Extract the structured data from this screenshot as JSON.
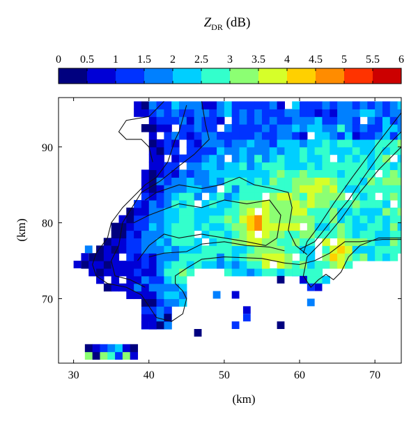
{
  "chart_data": {
    "type": "heatmap",
    "colorbar": {
      "title_main": "Z",
      "title_sub": "DR",
      "title_unit": " (dB)",
      "ticks": [
        "0",
        "0.5",
        "1",
        "1.5",
        "2",
        "2.5",
        "3",
        "3.5",
        "4",
        "4.5",
        "5",
        "5.5",
        "6"
      ],
      "range": [
        0,
        6
      ],
      "colors": [
        "#00007f",
        "#0000d6",
        "#0033ff",
        "#0080ff",
        "#00cfff",
        "#33ffcc",
        "#8cff73",
        "#d6ff29",
        "#ffd000",
        "#ff8c00",
        "#ff3300",
        "#cc0000",
        "#800000"
      ]
    },
    "xlabel": "(km)",
    "ylabel": "(km)",
    "xlim": [
      28,
      73.5
    ],
    "ylim": [
      61.5,
      96.5
    ],
    "xticks": [
      30,
      40,
      50,
      60,
      70
    ],
    "yticks": [
      70,
      80,
      90
    ],
    "values_note": "dB per 1 km cell, estimated",
    "blobs": [
      {
        "x": 40.5,
        "y": 74,
        "rx": 3.5,
        "ry": 3,
        "v": 0.6
      },
      {
        "x": 35,
        "y": 75,
        "rx": 2.5,
        "ry": 4,
        "v": 0.4
      },
      {
        "x": 37,
        "y": 80,
        "rx": 3,
        "ry": 4,
        "v": 0.9
      },
      {
        "x": 41,
        "y": 88,
        "rx": 2,
        "ry": 3,
        "v": 0.7
      },
      {
        "x": 45,
        "y": 91,
        "rx": 4,
        "ry": 4,
        "v": 1.0
      },
      {
        "x": 55,
        "y": 93,
        "rx": 6,
        "ry": 3,
        "v": 1.3
      },
      {
        "x": 54.5,
        "y": 79.5,
        "rx": 3,
        "ry": 2.5,
        "v": 4.7
      },
      {
        "x": 57.5,
        "y": 81.5,
        "rx": 1.5,
        "ry": 1.5,
        "v": 5.3
      },
      {
        "x": 54,
        "y": 80.5,
        "rx": 1,
        "ry": 1,
        "v": 5.4
      },
      {
        "x": 57,
        "y": 75,
        "rx": 2.5,
        "ry": 1.2,
        "v": 4.5
      },
      {
        "x": 63.5,
        "y": 84.5,
        "rx": 2,
        "ry": 1.5,
        "v": 4.6
      },
      {
        "x": 65,
        "y": 76.5,
        "rx": 1.5,
        "ry": 2.5,
        "v": 4.4
      },
      {
        "x": 59,
        "y": 82,
        "rx": 5,
        "ry": 5,
        "v": 3.4
      },
      {
        "x": 46,
        "y": 79,
        "rx": 4,
        "ry": 4,
        "v": 2.7
      },
      {
        "x": 44,
        "y": 73.5,
        "rx": 2.5,
        "ry": 2,
        "v": 3.0
      },
      {
        "x": 67,
        "y": 88,
        "rx": 4,
        "ry": 4,
        "v": 2.4
      },
      {
        "x": 70,
        "y": 80,
        "rx": 3,
        "ry": 3,
        "v": 2.6
      }
    ],
    "hole_cells": [
      [
        38,
        93
      ],
      [
        37,
        92
      ],
      [
        41,
        91
      ],
      [
        39,
        90
      ],
      [
        44,
        90
      ]
    ],
    "stray_cells": [
      {
        "x": 32,
        "y": 76.5,
        "v": 1.8
      },
      {
        "x": 31.5,
        "y": 75.5,
        "v": 0.6
      },
      {
        "x": 30.5,
        "y": 74.5,
        "v": 0.8
      },
      {
        "x": 34.5,
        "y": 77.5,
        "v": 0.3
      },
      {
        "x": 39.5,
        "y": 66.5,
        "v": 0.7
      },
      {
        "x": 41.5,
        "y": 66.5,
        "v": 0.4
      },
      {
        "x": 42.5,
        "y": 67.5,
        "v": 0.3
      },
      {
        "x": 46.5,
        "y": 65.5,
        "v": 0.2
      },
      {
        "x": 49,
        "y": 70.5,
        "v": 1.6
      },
      {
        "x": 51.5,
        "y": 70.5,
        "v": 0.6
      },
      {
        "x": 53,
        "y": 68.5,
        "v": 0.9
      },
      {
        "x": 53,
        "y": 67.5,
        "v": 1.0
      },
      {
        "x": 51.5,
        "y": 66.5,
        "v": 1.1
      },
      {
        "x": 57.5,
        "y": 66.5,
        "v": 0.3
      },
      {
        "x": 57.5,
        "y": 72.5,
        "v": 0.2
      },
      {
        "x": 59.5,
        "y": 73.5,
        "v": 2.9
      },
      {
        "x": 61.5,
        "y": 71.5,
        "v": 1.2
      },
      {
        "x": 62.5,
        "y": 71.5,
        "v": 0.6
      },
      {
        "x": 61.5,
        "y": 69.5,
        "v": 1.7
      },
      {
        "x": 60.5,
        "y": 72.5,
        "v": 0.5
      }
    ],
    "bottom_strip": {
      "y": [
        62.5,
        63.5
      ],
      "x": [
        32,
        33,
        34,
        35,
        36,
        37,
        38
      ],
      "values": [
        [
          3.2,
          0.3,
          3.0,
          2.5,
          1.3,
          3.1,
          0.9
        ],
        [
          0.3,
          0.6,
          1.1,
          1.9,
          2.2,
          0.5,
          0.2
        ]
      ]
    }
  }
}
